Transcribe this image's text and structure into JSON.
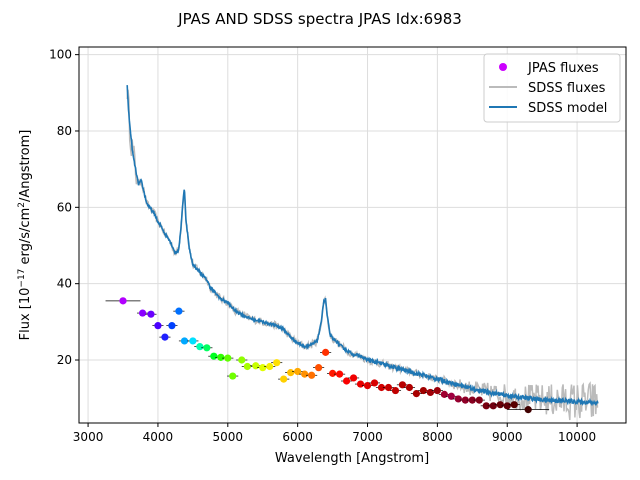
{
  "chart_data": {
    "type": "line",
    "title": "JPAS AND SDSS spectra JPAS Idx:6983",
    "xlabel": "Wavelength [Angstrom]",
    "ylabel_parts": {
      "pre": "Flux [10",
      "exp1": "−17",
      "mid": " erg/s/cm",
      "exp2": "2",
      "post": "/Angstrom]"
    },
    "xlim": [
      2870,
      10700
    ],
    "ylim": [
      3.5,
      102
    ],
    "xticks": [
      3000,
      4000,
      5000,
      6000,
      7000,
      8000,
      9000,
      10000
    ],
    "yticks": [
      20,
      40,
      60,
      80,
      100
    ],
    "grid": true,
    "legend_position": "top-right",
    "legend": {
      "jpas": "JPAS fluxes",
      "sdss": "SDSS fluxes",
      "model": "SDSS model"
    },
    "series": [
      {
        "name": "SDSS model",
        "color": "#1f77b4",
        "x": [
          3560,
          3580,
          3600,
          3640,
          3680,
          3720,
          3760,
          3800,
          3840,
          3880,
          3920,
          3960,
          4000,
          4050,
          4100,
          4150,
          4200,
          4250,
          4300,
          4330,
          4360,
          4380,
          4400,
          4450,
          4500,
          4550,
          4600,
          4650,
          4700,
          4750,
          4800,
          4850,
          4900,
          5000,
          5100,
          5200,
          5300,
          5400,
          5500,
          5600,
          5700,
          5800,
          5900,
          6000,
          6100,
          6200,
          6280,
          6330,
          6370,
          6400,
          6420,
          6460,
          6500,
          6550,
          6600,
          6700,
          6800,
          6900,
          7000,
          7100,
          7200,
          7300,
          7400,
          7500,
          7600,
          7700,
          7800,
          7900,
          8000,
          8100,
          8200,
          8300,
          8400,
          8500,
          8600,
          8700,
          8800,
          8900,
          9000,
          9100,
          9200,
          9300,
          9400,
          9500,
          9600,
          9700,
          9800,
          9900,
          10000,
          10100,
          10200,
          10300
        ],
        "values": [
          92,
          85,
          81,
          74,
          70,
          66,
          67,
          64,
          61,
          60,
          59,
          58,
          56,
          55,
          53,
          52,
          50,
          48,
          49,
          55,
          62,
          65,
          57,
          49,
          45,
          44,
          43,
          42,
          41,
          39,
          38,
          37,
          36,
          35,
          33,
          32,
          31,
          30.5,
          30,
          29.5,
          29,
          28,
          26,
          24.5,
          23.5,
          24,
          25,
          29,
          35,
          36,
          32,
          27,
          25.5,
          25,
          24,
          22.5,
          21.5,
          21,
          20,
          19.5,
          19,
          18.5,
          18,
          17.5,
          17,
          16.5,
          16,
          15.5,
          15,
          14.5,
          14,
          13.5,
          13,
          12.5,
          12,
          11.7,
          11.3,
          11,
          10.7,
          10.4,
          10.2,
          10,
          9.8,
          9.6,
          9.5,
          9.4,
          9.3,
          9.2,
          9.1,
          9,
          8.9,
          8.8
        ]
      },
      {
        "name": "SDSS fluxes",
        "color": "#bbbbbb"
      }
    ],
    "jpas_points": [
      {
        "x": 3500,
        "y": 35.5,
        "xerr": 250,
        "color": "#b200ff"
      },
      {
        "x": 3780,
        "y": 32.3,
        "xerr": 80,
        "color": "#8a00ff"
      },
      {
        "x": 3900,
        "y": 32.0,
        "xerr": 80,
        "color": "#6a00ff"
      },
      {
        "x": 4000,
        "y": 29.0,
        "xerr": 80,
        "color": "#4a00ff"
      },
      {
        "x": 4100,
        "y": 26.0,
        "xerr": 80,
        "color": "#2020ff"
      },
      {
        "x": 4200,
        "y": 29.0,
        "xerr": 80,
        "color": "#0040ff"
      },
      {
        "x": 4300,
        "y": 32.8,
        "xerr": 80,
        "color": "#0070ff"
      },
      {
        "x": 4380,
        "y": 25.0,
        "xerr": 80,
        "color": "#00a8ff"
      },
      {
        "x": 4500,
        "y": 25.0,
        "xerr": 80,
        "color": "#00e0ff"
      },
      {
        "x": 4600,
        "y": 23.5,
        "xerr": 80,
        "color": "#00ffb0"
      },
      {
        "x": 4700,
        "y": 23.2,
        "xerr": 80,
        "color": "#00ff60"
      },
      {
        "x": 4800,
        "y": 21.0,
        "xerr": 80,
        "color": "#00ff20"
      },
      {
        "x": 4900,
        "y": 20.7,
        "xerr": 80,
        "color": "#30ff00"
      },
      {
        "x": 5000,
        "y": 20.5,
        "xerr": 80,
        "color": "#60ff00"
      },
      {
        "x": 5070,
        "y": 15.8,
        "xerr": 80,
        "color": "#70ff00"
      },
      {
        "x": 5200,
        "y": 20.0,
        "xerr": 80,
        "color": "#90ff00"
      },
      {
        "x": 5280,
        "y": 18.3,
        "xerr": 80,
        "color": "#a8ff00"
      },
      {
        "x": 5400,
        "y": 18.5,
        "xerr": 80,
        "color": "#c8ff00"
      },
      {
        "x": 5500,
        "y": 18.0,
        "xerr": 80,
        "color": "#e0ff00"
      },
      {
        "x": 5600,
        "y": 18.3,
        "xerr": 80,
        "color": "#f5f000"
      },
      {
        "x": 5700,
        "y": 19.3,
        "xerr": 80,
        "color": "#ffe000"
      },
      {
        "x": 5800,
        "y": 15.0,
        "xerr": 80,
        "color": "#ffd000"
      },
      {
        "x": 5900,
        "y": 16.7,
        "xerr": 80,
        "color": "#ffc000"
      },
      {
        "x": 6000,
        "y": 17.0,
        "xerr": 80,
        "color": "#ffa800"
      },
      {
        "x": 6100,
        "y": 16.3,
        "xerr": 80,
        "color": "#ff9000"
      },
      {
        "x": 6200,
        "y": 16.0,
        "xerr": 80,
        "color": "#ff7000"
      },
      {
        "x": 6300,
        "y": 18.0,
        "xerr": 80,
        "color": "#ff5000"
      },
      {
        "x": 6400,
        "y": 22.0,
        "xerr": 80,
        "color": "#ff3000"
      },
      {
        "x": 6500,
        "y": 16.5,
        "xerr": 80,
        "color": "#ff1800"
      },
      {
        "x": 6600,
        "y": 16.3,
        "xerr": 80,
        "color": "#ff0800"
      },
      {
        "x": 6700,
        "y": 14.5,
        "xerr": 80,
        "color": "#f80000"
      },
      {
        "x": 6800,
        "y": 15.3,
        "xerr": 80,
        "color": "#f00000"
      },
      {
        "x": 6900,
        "y": 13.7,
        "xerr": 80,
        "color": "#e80000"
      },
      {
        "x": 7000,
        "y": 13.3,
        "xerr": 80,
        "color": "#e00000"
      },
      {
        "x": 7100,
        "y": 14.0,
        "xerr": 80,
        "color": "#d80000"
      },
      {
        "x": 7200,
        "y": 12.8,
        "xerr": 80,
        "color": "#d00000"
      },
      {
        "x": 7300,
        "y": 12.8,
        "xerr": 80,
        "color": "#c80000"
      },
      {
        "x": 7400,
        "y": 12.0,
        "xerr": 80,
        "color": "#c00000"
      },
      {
        "x": 7500,
        "y": 13.5,
        "xerr": 80,
        "color": "#b80000"
      },
      {
        "x": 7600,
        "y": 12.8,
        "xerr": 80,
        "color": "#b00000"
      },
      {
        "x": 7700,
        "y": 11.2,
        "xerr": 80,
        "color": "#a80000"
      },
      {
        "x": 7800,
        "y": 12.0,
        "xerr": 80,
        "color": "#a00000"
      },
      {
        "x": 7900,
        "y": 11.5,
        "xerr": 80,
        "color": "#a00008"
      },
      {
        "x": 8000,
        "y": 12.0,
        "xerr": 80,
        "color": "#9a000a"
      },
      {
        "x": 8100,
        "y": 11.0,
        "xerr": 80,
        "color": "#a00030"
      },
      {
        "x": 8200,
        "y": 10.5,
        "xerr": 80,
        "color": "#a00040"
      },
      {
        "x": 8300,
        "y": 9.8,
        "xerr": 80,
        "color": "#980030"
      },
      {
        "x": 8400,
        "y": 9.5,
        "xerr": 80,
        "color": "#900028"
      },
      {
        "x": 8500,
        "y": 9.5,
        "xerr": 80,
        "color": "#880020"
      },
      {
        "x": 8600,
        "y": 9.5,
        "xerr": 80,
        "color": "#800018"
      },
      {
        "x": 8700,
        "y": 8.0,
        "xerr": 80,
        "color": "#780010"
      },
      {
        "x": 8800,
        "y": 8.0,
        "xerr": 80,
        "color": "#700010"
      },
      {
        "x": 8900,
        "y": 8.3,
        "xerr": 80,
        "color": "#680008"
      },
      {
        "x": 9000,
        "y": 8.0,
        "xerr": 80,
        "color": "#600008"
      },
      {
        "x": 9100,
        "y": 8.3,
        "xerr": 80,
        "color": "#580000"
      },
      {
        "x": 9300,
        "y": 7.0,
        "xerr": 300,
        "color": "#400000"
      }
    ]
  }
}
